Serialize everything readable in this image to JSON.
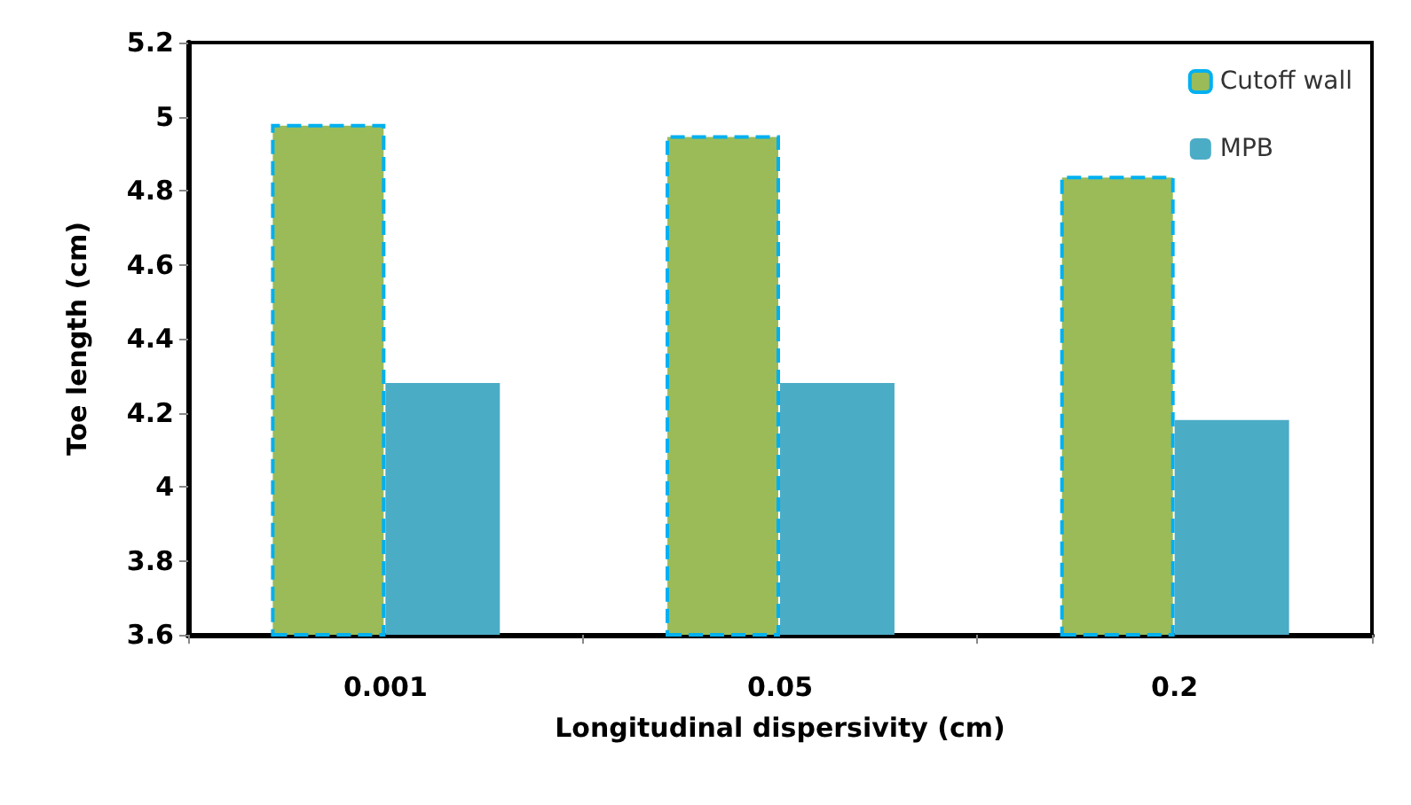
{
  "chart_data": {
    "type": "bar",
    "xlabel": "Longitudinal dispersivity (cm)",
    "ylabel": "Toe length (cm)",
    "categories": [
      "0.001",
      "0.05",
      "0.2"
    ],
    "series": [
      {
        "name": "Cutoff wall",
        "color": "#9bbb59",
        "values": [
          4.98,
          4.95,
          4.84
        ]
      },
      {
        "name": "MPB",
        "color": "#4bacc6",
        "values": [
          4.28,
          4.28,
          4.18
        ]
      }
    ],
    "ylim": [
      3.6,
      5.2
    ],
    "yticks": [
      3.6,
      3.8,
      4,
      4.2,
      4.4,
      4.6,
      4.8,
      5,
      5.2
    ],
    "grid": false,
    "legend": "top right"
  }
}
